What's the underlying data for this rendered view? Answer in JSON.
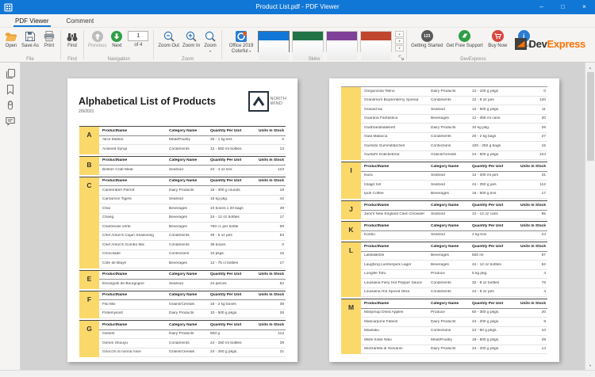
{
  "window": {
    "title": "Product List.pdf - PDF Viewer"
  },
  "icons": {
    "minimize": "–",
    "maximize": "□",
    "close": "×",
    "caret_down": "▾",
    "arrow_up": "▲",
    "arrow_down": "▼"
  },
  "ribbon": {
    "tabs": [
      {
        "label": "PDF Viewer",
        "active": true
      },
      {
        "label": "Comment",
        "active": false
      }
    ],
    "file": {
      "label": "File",
      "open": "Open",
      "save_as": "Save As",
      "print": "Print"
    },
    "find": {
      "label": "Find",
      "find": "Find"
    },
    "navigation": {
      "label": "Navigation",
      "previous": "Previous",
      "next": "Next",
      "page_value": "1",
      "page_of": "of 4"
    },
    "zoom": {
      "label": "Zoom",
      "zoom_out": "Zoom Out",
      "zoom_in": "Zoom In",
      "zoom": "Zoom"
    },
    "skins": {
      "label": "Skins",
      "selector_line1": "Office 2019",
      "selector_line2": "Colorful",
      "swatch_colors": [
        "#1177d7",
        "#217346",
        "#7e4099",
        "#c0462e"
      ]
    },
    "devexpress": {
      "label": "DevExpress",
      "getting_started": "Getting Started",
      "getting_started_badge": "123",
      "get_free_support": "Get Free Support",
      "buy_now": "Buy Now",
      "about": "About",
      "about_glyph": "i"
    },
    "logo": {
      "dev": "Dev",
      "express": "Express"
    }
  },
  "colors": {
    "accent": "#1177d7",
    "letter_column": "#fbd86a",
    "next_green": "#2f9e44",
    "buy_red": "#d9453d",
    "started_gray": "#595959"
  },
  "document": {
    "columns": [
      "ProductName",
      "Category Name",
      "Quantity Per Unit",
      "Units In Stock"
    ],
    "page1": {
      "title": "Alphabetical List of Products",
      "date": "2/9/2021",
      "logo_line1": "NORTH",
      "logo_line2": "WIND",
      "sections": [
        {
          "letter": "A",
          "rows": [
            [
              "Alice Mutton",
              "Meat/Poultry",
              "20 - 1 kg tins",
              "0"
            ],
            [
              "Aniseed Syrup",
              "Condiments",
              "12 - 550 ml bottles",
              "13"
            ]
          ]
        },
        {
          "letter": "B",
          "rows": [
            [
              "Boston Crab Meat",
              "Seafood",
              "24 - 4 oz tins",
              "123"
            ]
          ]
        },
        {
          "letter": "C",
          "rows": [
            [
              "Camembert Pierrot",
              "Dairy Products",
              "15 - 300 g rounds",
              "19"
            ],
            [
              "Carnarvon Tigers",
              "Seafood",
              "16 kg pkg.",
              "42"
            ],
            [
              "Chai",
              "Beverages",
              "10 boxes x 20 bags",
              "39"
            ],
            [
              "Chang",
              "Beverages",
              "24 - 12 oz bottles",
              "17"
            ],
            [
              "Chartreuse verte",
              "Beverages",
              "750 cc per bottle",
              "69"
            ],
            [
              "Chef Anton's Cajun Seasoning",
              "Condiments",
              "48 - 6 oz jars",
              "53"
            ],
            [
              "Chef Anton's Gumbo Mix",
              "Condiments",
              "36 boxes",
              "0"
            ],
            [
              "Chocolade",
              "Confections",
              "10 pkgs.",
              "15"
            ],
            [
              "Côte de Blaye",
              "Beverages",
              "12 - 75 cl bottles",
              "17"
            ]
          ]
        },
        {
          "letter": "E",
          "rows": [
            [
              "Escargots de Bourgogne",
              "Seafood",
              "24 pieces",
              "62"
            ]
          ]
        },
        {
          "letter": "F",
          "rows": [
            [
              "Filo Mix",
              "Grains/Cereals",
              "16 - 2 kg boxes",
              "38"
            ],
            [
              "Flotemysost",
              "Dairy Products",
              "10 - 500 g pkgs.",
              "26"
            ]
          ]
        },
        {
          "letter": "G",
          "rows": [
            [
              "Geitost",
              "Dairy Products",
              "500 g",
              "112"
            ],
            [
              "Genen Shouyu",
              "Condiments",
              "24 - 250 ml bottles",
              "39"
            ],
            [
              "Gnocchi di nonna Alice",
              "Grains/Cereals",
              "24 - 250 g pkgs.",
              "21"
            ]
          ]
        }
      ]
    },
    "page2": {
      "sections": [
        {
          "letter": "",
          "header": false,
          "rows": [
            [
              "Gorgonzola Telino",
              "Dairy Products",
              "12 - 100 g pkgs",
              "0"
            ],
            [
              "Grandma's Boysenberry Spread",
              "Condiments",
              "12 - 8 oz jars",
              "120"
            ],
            [
              "Gravad lax",
              "Seafood",
              "12 - 500 g pkgs.",
              "11"
            ],
            [
              "Guaraná Fantástica",
              "Beverages",
              "12 - 355 ml cans",
              "20"
            ],
            [
              "Gudbrandsdalsost",
              "Dairy Products",
              "10 kg pkg.",
              "26"
            ],
            [
              "Gula Malacca",
              "Condiments",
              "20 - 2 kg bags",
              "27"
            ],
            [
              "Gumbär Gummibärchen",
              "Confections",
              "100 - 250 g bags",
              "15"
            ],
            [
              "Gustaf's Knäckebröd",
              "Grains/Cereals",
              "24 - 500 g pkgs.",
              "104"
            ]
          ]
        },
        {
          "letter": "I",
          "rows": [
            [
              "Ikura",
              "Seafood",
              "12 - 200 ml jars",
              "31"
            ],
            [
              "Inlagd Sill",
              "Seafood",
              "24 - 250 g jars",
              "112"
            ],
            [
              "Ipoh Coffee",
              "Beverages",
              "16 - 500 g tins",
              "17"
            ]
          ]
        },
        {
          "letter": "J",
          "rows": [
            [
              "Jack's New England Clam Chowder",
              "Seafood",
              "12 - 12 oz cans",
              "85"
            ]
          ]
        },
        {
          "letter": "K",
          "rows": [
            [
              "Konbu",
              "Seafood",
              "2 kg box",
              "24"
            ]
          ]
        },
        {
          "letter": "L",
          "rows": [
            [
              "Lakkalikööri",
              "Beverages",
              "500 ml",
              "57"
            ],
            [
              "Laughing Lumberjack Lager",
              "Beverages",
              "24 - 12 oz bottles",
              "52"
            ],
            [
              "Longlife Tofu",
              "Produce",
              "5 kg pkg.",
              "4"
            ],
            [
              "Louisiana Fiery Hot Pepper Sauce",
              "Condiments",
              "32 - 8 oz bottles",
              "76"
            ],
            [
              "Louisiana Hot Spiced Okra",
              "Condiments",
              "24 - 8 oz jars",
              "4"
            ]
          ]
        },
        {
          "letter": "M",
          "rows": [
            [
              "Manjimup Dried Apples",
              "Produce",
              "50 - 300 g pkgs.",
              "20"
            ],
            [
              "Mascarpone Fabioli",
              "Dairy Products",
              "24 - 200 g pkgs.",
              "9"
            ],
            [
              "Maxilaku",
              "Confections",
              "24 - 50 g pkgs.",
              "10"
            ],
            [
              "Mishi Kobe Niku",
              "Meat/Poultry",
              "18 - 500 g pkgs.",
              "29"
            ],
            [
              "Mozzarella di Giovanni",
              "Dairy Products",
              "24 - 200 g pkgs.",
              "14"
            ]
          ]
        }
      ]
    }
  }
}
